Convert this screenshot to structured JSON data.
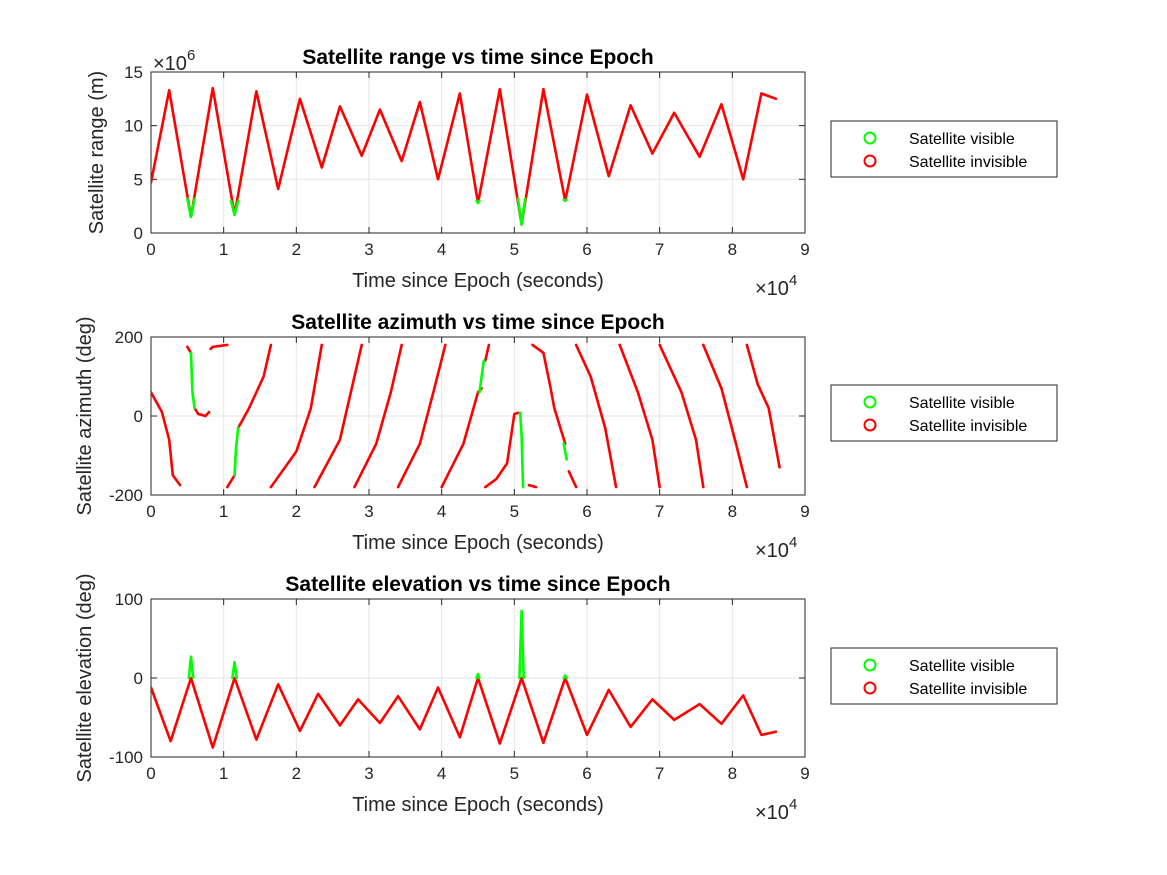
{
  "chart_data": [
    {
      "type": "scatter",
      "title": "Satellite range vs time since Epoch",
      "xlabel": "Time since Epoch (seconds)",
      "ylabel": "Satellite range (m)",
      "x_multiplier": "×10",
      "x_multiplier_exp": "4",
      "y_multiplier": "×10",
      "y_multiplier_exp": "6",
      "xlim": [
        0,
        9
      ],
      "ylim": [
        0,
        15
      ],
      "xticks": [
        0,
        1,
        2,
        3,
        4,
        5,
        6,
        7,
        8,
        9
      ],
      "yticks": [
        0,
        5,
        10,
        15
      ],
      "grid": true,
      "legend": {
        "placement": "outside-right",
        "entries": [
          "Satellite visible",
          "Satellite invisible"
        ]
      },
      "colors": {
        "visible": "#00ff00",
        "invisible": "#ff0000"
      },
      "series": [
        {
          "name": "Satellite invisible",
          "x": [
            0.0,
            0.25,
            0.55,
            0.85,
            1.15,
            1.45,
            1.75,
            2.05,
            2.35,
            2.6,
            2.9,
            3.15,
            3.45,
            3.7,
            3.95,
            4.25,
            4.5,
            4.8,
            5.1,
            5.4,
            5.7,
            6.0,
            6.3,
            6.6,
            6.9,
            7.2,
            7.55,
            7.85,
            8.15,
            8.4,
            8.6
          ],
          "y": [
            4.7,
            13.3,
            1.5,
            13.5,
            1.7,
            13.2,
            4.1,
            12.5,
            6.1,
            11.8,
            7.2,
            11.5,
            6.7,
            12.2,
            5.0,
            13.0,
            2.8,
            13.4,
            0.8,
            13.4,
            3.0,
            12.9,
            5.3,
            11.9,
            7.4,
            11.2,
            7.1,
            12.0,
            5.0,
            13.0,
            12.5
          ]
        },
        {
          "name": "Satellite visible",
          "segments": [
            {
              "x": [
                0.5,
                0.55,
                0.6
              ],
              "y": [
                3.2,
                1.5,
                3.2
              ]
            },
            {
              "x": [
                1.1,
                1.15,
                1.2
              ],
              "y": [
                3.0,
                1.7,
                3.0
              ]
            },
            {
              "x": [
                4.48,
                4.5,
                4.52
              ],
              "y": [
                3.0,
                2.8,
                3.0
              ]
            },
            {
              "x": [
                5.05,
                5.1,
                5.15
              ],
              "y": [
                3.2,
                0.8,
                3.2
              ]
            },
            {
              "x": [
                5.68,
                5.7,
                5.72
              ],
              "y": [
                3.1,
                3.0,
                3.1
              ]
            }
          ]
        }
      ]
    },
    {
      "type": "scatter",
      "title": "Satellite azimuth vs time since Epoch",
      "xlabel": "Time since Epoch (seconds)",
      "ylabel": "Satellite azimuth (deg)",
      "x_multiplier": "×10",
      "x_multiplier_exp": "4",
      "xlim": [
        0,
        9
      ],
      "ylim": [
        -200,
        200
      ],
      "xticks": [
        0,
        1,
        2,
        3,
        4,
        5,
        6,
        7,
        8,
        9
      ],
      "yticks": [
        -200,
        0,
        200
      ],
      "grid": true,
      "legend": {
        "placement": "outside-right",
        "entries": [
          "Satellite visible",
          "Satellite invisible"
        ]
      },
      "colors": {
        "visible": "#00ff00",
        "invisible": "#ff0000"
      },
      "series": [
        {
          "name": "Satellite invisible",
          "segments": [
            {
              "x": [
                0.0,
                0.15,
                0.25,
                0.3,
                0.4
              ],
              "y": [
                60,
                10,
                -60,
                -150,
                -175
              ]
            },
            {
              "x": [
                0.5,
                0.55
              ],
              "y": [
                175,
                160
              ]
            },
            {
              "x": [
                0.6,
                0.65,
                0.75,
                0.8
              ],
              "y": [
                20,
                5,
                0,
                10
              ]
            },
            {
              "x": [
                0.82,
                0.85
              ],
              "y": [
                170,
                175
              ]
            },
            {
              "x": [
                0.85,
                1.05
              ],
              "y": [
                175,
                180
              ]
            },
            {
              "x": [
                1.05,
                1.15
              ],
              "y": [
                -180,
                -150
              ]
            },
            {
              "x": [
                1.2,
                1.35,
                1.55,
                1.65
              ],
              "y": [
                -30,
                20,
                100,
                180
              ]
            },
            {
              "x": [
                1.65,
                2.0,
                2.2,
                2.35
              ],
              "y": [
                -180,
                -90,
                20,
                180
              ]
            },
            {
              "x": [
                2.25,
                2.6,
                2.75,
                2.9
              ],
              "y": [
                -180,
                -60,
                60,
                180
              ]
            },
            {
              "x": [
                2.8,
                3.1,
                3.3,
                3.45
              ],
              "y": [
                -180,
                -70,
                60,
                180
              ]
            },
            {
              "x": [
                3.4,
                3.7,
                3.9,
                4.05
              ],
              "y": [
                -180,
                -70,
                70,
                180
              ]
            },
            {
              "x": [
                4.0,
                4.3,
                4.5,
                4.55
              ],
              "y": [
                -180,
                -70,
                60,
                70
              ]
            },
            {
              "x": [
                4.6,
                4.65
              ],
              "y": [
                140,
                180
              ]
            },
            {
              "x": [
                4.6,
                4.75,
                4.9,
                5.0,
                5.05
              ],
              "y": [
                -180,
                -160,
                -120,
                5,
                8
              ]
            },
            {
              "x": [
                5.2,
                5.3
              ],
              "y": [
                -175,
                -180
              ]
            },
            {
              "x": [
                5.25,
                5.4,
                5.5,
                5.55,
                5.7
              ],
              "y": [
                180,
                160,
                70,
                20,
                -70
              ]
            },
            {
              "x": [
                5.75,
                5.85
              ],
              "y": [
                -140,
                -180
              ]
            },
            {
              "x": [
                5.85,
                6.05,
                6.25,
                6.4
              ],
              "y": [
                180,
                100,
                -30,
                -180
              ]
            },
            {
              "x": [
                6.45,
                6.7,
                6.9,
                7.0
              ],
              "y": [
                180,
                60,
                -60,
                -180
              ]
            },
            {
              "x": [
                7.0,
                7.3,
                7.5,
                7.6
              ],
              "y": [
                180,
                60,
                -60,
                -180
              ]
            },
            {
              "x": [
                7.6,
                7.85,
                8.05,
                8.2
              ],
              "y": [
                180,
                70,
                -70,
                -180
              ]
            },
            {
              "x": [
                8.2,
                8.35,
                8.5,
                8.65
              ],
              "y": [
                180,
                80,
                20,
                -130
              ]
            }
          ]
        },
        {
          "name": "Satellite visible",
          "segments": [
            {
              "x": [
                0.55,
                0.57,
                0.6
              ],
              "y": [
                160,
                60,
                20
              ]
            },
            {
              "x": [
                1.15,
                1.17,
                1.2
              ],
              "y": [
                -150,
                -80,
                -30
              ]
            },
            {
              "x": [
                4.52,
                4.55,
                4.58
              ],
              "y": [
                60,
                100,
                140
              ]
            },
            {
              "x": [
                5.08,
                5.1,
                5.12
              ],
              "y": [
                8,
                -50,
                -180
              ]
            },
            {
              "x": [
                5.68,
                5.72
              ],
              "y": [
                -70,
                -110
              ]
            }
          ]
        }
      ]
    },
    {
      "type": "scatter",
      "title": "Satellite elevation vs time since Epoch",
      "xlabel": "Time since Epoch (seconds)",
      "ylabel": "Satellite elevation (deg)",
      "x_multiplier": "×10",
      "x_multiplier_exp": "4",
      "xlim": [
        0,
        9
      ],
      "ylim": [
        -100,
        100
      ],
      "xticks": [
        0,
        1,
        2,
        3,
        4,
        5,
        6,
        7,
        8,
        9
      ],
      "yticks": [
        -100,
        0,
        100
      ],
      "grid": true,
      "legend": {
        "placement": "outside-right",
        "entries": [
          "Satellite visible",
          "Satellite invisible"
        ]
      },
      "colors": {
        "visible": "#00ff00",
        "invisible": "#ff0000"
      },
      "series": [
        {
          "name": "Satellite invisible",
          "x": [
            0.0,
            0.27,
            0.55,
            0.85,
            1.15,
            1.45,
            1.75,
            2.05,
            2.3,
            2.6,
            2.85,
            3.15,
            3.4,
            3.7,
            3.95,
            4.25,
            4.5,
            4.8,
            5.1,
            5.4,
            5.7,
            6.0,
            6.3,
            6.6,
            6.9,
            7.2,
            7.55,
            7.85,
            8.15,
            8.4,
            8.6
          ],
          "y": [
            -12,
            -80,
            0,
            -88,
            0,
            -78,
            -8,
            -67,
            -20,
            -60,
            -27,
            -57,
            -23,
            -65,
            -12,
            -75,
            0,
            -83,
            0,
            -82,
            0,
            -72,
            -15,
            -62,
            -27,
            -53,
            -33,
            -58,
            -22,
            -72,
            -68
          ]
        },
        {
          "name": "Satellite visible",
          "segments": [
            {
              "x": [
                0.52,
                0.55,
                0.58
              ],
              "y": [
                0,
                27,
                0
              ]
            },
            {
              "x": [
                1.12,
                1.15,
                1.18
              ],
              "y": [
                0,
                20,
                0
              ]
            },
            {
              "x": [
                4.48,
                4.5,
                4.52
              ],
              "y": [
                0,
                5,
                0
              ]
            },
            {
              "x": [
                5.07,
                5.1,
                5.13
              ],
              "y": [
                0,
                85,
                0
              ]
            },
            {
              "x": [
                5.68,
                5.7,
                5.72
              ],
              "y": [
                0,
                3,
                0
              ]
            }
          ]
        }
      ]
    }
  ]
}
